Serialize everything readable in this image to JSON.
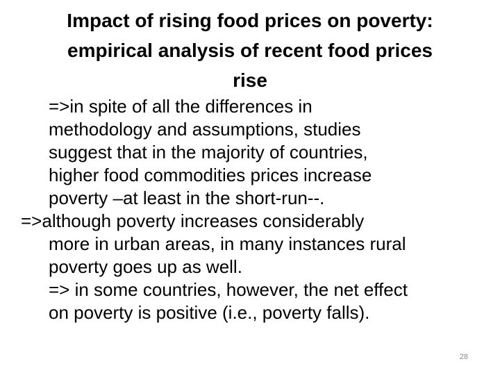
{
  "slide": {
    "title_lines": [
      "Impact of rising food prices on poverty:",
      "empirical analysis of recent food prices",
      "rise"
    ],
    "paragraphs": [
      {
        "lines": [
          "=>in spite of all the differences in",
          "methodology and assumptions, studies",
          "suggest that in the majority of countries,",
          "higher food commodities prices increase",
          "poverty –at least in the short-run--."
        ]
      },
      {
        "lines": [
          "=>although poverty increases considerably",
          "more in urban areas, in many instances rural",
          "poverty goes up as well."
        ]
      },
      {
        "lines": [
          "=> in some countries, however, the net effect",
          "on poverty is positive (i.e., poverty falls)."
        ]
      }
    ],
    "page_number": "28"
  }
}
